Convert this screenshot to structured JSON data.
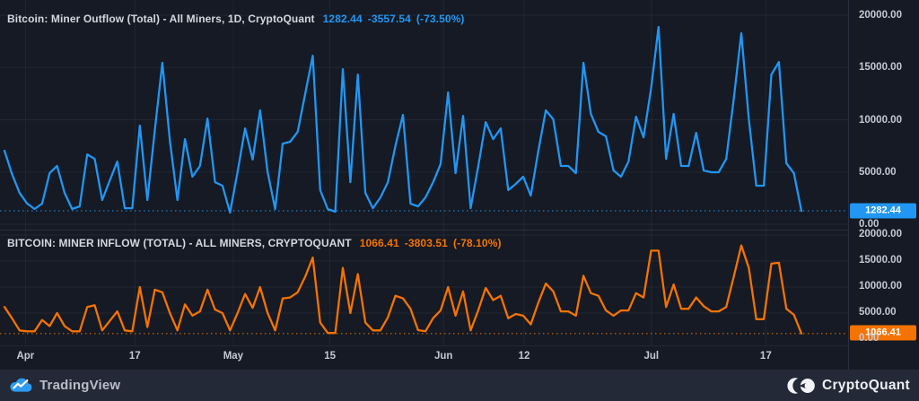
{
  "panels": [
    {
      "title": "Bitcoin: Miner Outflow (Total) - All Miners, 1D, CryptoQuant",
      "value": "1282.44",
      "change": "-3557.54",
      "change_pct": "(-73.50%)",
      "badge": "1282.44",
      "color": "#2196f3",
      "y_ticks": [
        "20000.00",
        "15000.00",
        "10000.00",
        "5000.00",
        "0.00"
      ]
    },
    {
      "title": "BITCOIN: MINER INFLOW (TOTAL) - ALL MINERS, CRYPTOQUANT",
      "value": "1066.41",
      "change": "-3803.51",
      "change_pct": "(-78.10%)",
      "badge": "1066.41",
      "color": "#f57300",
      "y_ticks": [
        "20000.00",
        "15000.00",
        "10000.00",
        "5000.00",
        "0.00"
      ]
    }
  ],
  "x_ticks": [
    {
      "label": "Apr",
      "pos": 0.03
    },
    {
      "label": "17",
      "pos": 0.159
    },
    {
      "label": "May",
      "pos": 0.275
    },
    {
      "label": "15",
      "pos": 0.389
    },
    {
      "label": "Jun",
      "pos": 0.523
    },
    {
      "label": "12",
      "pos": 0.618
    },
    {
      "label": "Jul",
      "pos": 0.768
    },
    {
      "label": "17",
      "pos": 0.903
    }
  ],
  "footer": {
    "tradingview": "TradingView",
    "cryptoquant": "CryptoQuant"
  },
  "colors": {
    "background": "#151a24",
    "footer_background": "#232936",
    "grid": "rgba(255,255,255,0.055)",
    "outflow_line": "#2196f3",
    "inflow_line": "#f57300",
    "axis_text": "#c4c9d4",
    "title_text": "#d5d8e0"
  },
  "chart_data": [
    {
      "type": "line",
      "panel": "top",
      "title": "Bitcoin: Miner Outflow (Total) - All Miners, 1D, CryptoQuant",
      "series_name": "Miner Outflow (Total) - All Miners",
      "interval": "1D",
      "last_value": 1282.44,
      "change": -3557.54,
      "change_pct": -73.5,
      "color": "#2196f3",
      "ylim": [
        0,
        20000
      ],
      "x_axis_labels": [
        "Apr",
        "17",
        "May",
        "15",
        "Jun",
        "12",
        "Jul",
        "17"
      ],
      "values": [
        7040,
        4800,
        3000,
        2000,
        1460,
        1970,
        4890,
        5580,
        3000,
        1460,
        1720,
        6690,
        6260,
        2320,
        4200,
        6000,
        1540,
        1540,
        9440,
        2320,
        9000,
        15450,
        8000,
        2320,
        8150,
        4550,
        5580,
        10120,
        4030,
        3690,
        1120,
        5000,
        9180,
        6200,
        10900,
        5000,
        1460,
        7720,
        7900,
        8840,
        12500,
        16130,
        3260,
        1460,
        1200,
        14840,
        4030,
        14330,
        3000,
        1540,
        2570,
        4030,
        7500,
        10470,
        1970,
        1720,
        2570,
        4000,
        5750,
        12620,
        4890,
        10380,
        1540,
        5500,
        9780,
        8150,
        9180,
        3260,
        3860,
        4550,
        2740,
        7000,
        10900,
        10040,
        5580,
        5580,
        4890,
        15450,
        10560,
        8840,
        8410,
        5150,
        4550,
        6000,
        10300,
        8320,
        13000,
        18880,
        6260,
        10560,
        5580,
        5580,
        8750,
        5150,
        4980,
        4980,
        6260,
        12000,
        18280,
        10040,
        3690,
        3690,
        14330,
        15530,
        5840,
        4890,
        1282.44
      ]
    },
    {
      "type": "line",
      "panel": "bottom",
      "title": "BITCOIN: MINER INFLOW (TOTAL) - ALL MINERS, CRYPTOQUANT",
      "series_name": "Miner Inflow (Total) - All Miners",
      "last_value": 1066.41,
      "change": -3803.51,
      "change_pct": -78.1,
      "color": "#f57300",
      "ylim": [
        0,
        20000
      ],
      "x_axis_labels": [
        "Apr",
        "17",
        "May",
        "15",
        "Jun",
        "12",
        "Jul",
        "17"
      ],
      "values": [
        6170,
        4000,
        1670,
        1500,
        1500,
        3670,
        2500,
        5000,
        2500,
        1500,
        1500,
        6170,
        6500,
        1670,
        3500,
        5330,
        1670,
        1500,
        10000,
        2330,
        9500,
        9000,
        5000,
        1670,
        6670,
        4500,
        5330,
        9500,
        5670,
        5000,
        1670,
        5000,
        8670,
        6000,
        10000,
        5000,
        1670,
        7830,
        8000,
        9000,
        12000,
        15670,
        3170,
        1170,
        1170,
        13670,
        5000,
        12500,
        3170,
        1670,
        1670,
        4170,
        8330,
        7830,
        5830,
        1720,
        1500,
        4000,
        5500,
        10000,
        4500,
        9170,
        1670,
        5500,
        9830,
        7500,
        8330,
        4000,
        4830,
        4500,
        2830,
        7000,
        10670,
        9170,
        5330,
        5330,
        4500,
        12170,
        8830,
        8330,
        5500,
        4500,
        5500,
        5500,
        8830,
        8000,
        17000,
        17000,
        6170,
        10500,
        5830,
        5830,
        8000,
        6330,
        5330,
        5330,
        6170,
        12000,
        18000,
        13670,
        3830,
        3830,
        14500,
        14670,
        5830,
        4670,
        1066.41
      ]
    }
  ]
}
